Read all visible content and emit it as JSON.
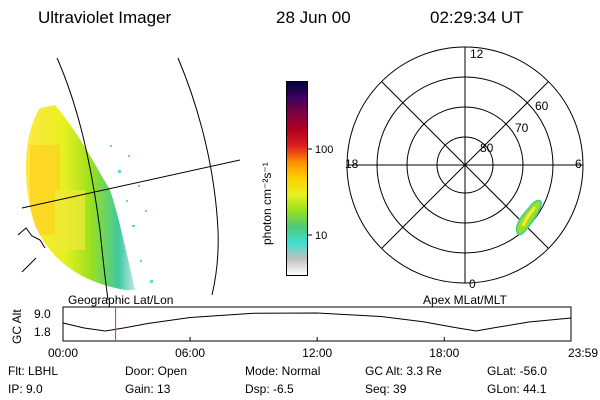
{
  "header": {
    "instrument": "Ultraviolet Imager",
    "date": "28 Jun 00",
    "time": "02:29:34 UT"
  },
  "colorbar": {
    "label": "photon cm⁻²s⁻¹",
    "ticks": [
      "100",
      "10"
    ],
    "stops": [
      "#ffffff",
      "#c0c0c0",
      "#40e0d0",
      "#50c878",
      "#98e020",
      "#e8f020",
      "#ffd000",
      "#ff9000",
      "#e02020",
      "#b00020",
      "#800040",
      "#400060",
      "#000040"
    ]
  },
  "left_panel": {
    "caption": "Geographic Lat/Lon"
  },
  "polar_plot": {
    "caption": "Apex MLat/MLT",
    "mlt_labels": [
      "12",
      "18",
      "6",
      "0"
    ],
    "mlat_labels": [
      "60",
      "70",
      "80"
    ]
  },
  "altitude_plot": {
    "ylabel": "GC Alt",
    "yticks": [
      "9.0",
      "1.8"
    ],
    "xticks": [
      "00:00",
      "06:00",
      "12:00",
      "18:00",
      "23:59"
    ],
    "marker_color": "#e03030"
  },
  "chart_data": {
    "type": "line",
    "title": "",
    "xlabel": "",
    "ylabel": "GC Alt",
    "x": [
      "00:00",
      "01:00",
      "02:00",
      "03:00",
      "04:00",
      "06:00",
      "09:00",
      "12:00",
      "15:00",
      "17:00",
      "18:30",
      "19:30",
      "20:30",
      "22:00",
      "23:59"
    ],
    "series": [
      {
        "values": [
          5.0,
          3.0,
          1.8,
          3.2,
          4.8,
          7.2,
          8.9,
          9.0,
          7.6,
          5.5,
          3.2,
          1.8,
          3.3,
          5.4,
          7.0
        ]
      }
    ],
    "ylim": [
      1.8,
      9.0
    ],
    "marker_time": "02:29",
    "grid": false,
    "legend": "none"
  },
  "status": {
    "filter": "Flt: LBHL",
    "ip": "IP:  9.0",
    "door": "Door: Open",
    "gain": "Gain: 13",
    "mode": "Mode: Normal",
    "dsp": "Dsp:    -6.5",
    "gc_alt": "GC Alt: 3.3 Re",
    "seq": "Seq: 39",
    "glat": "GLat: -56.0",
    "glon": "GLon:  44.1"
  }
}
